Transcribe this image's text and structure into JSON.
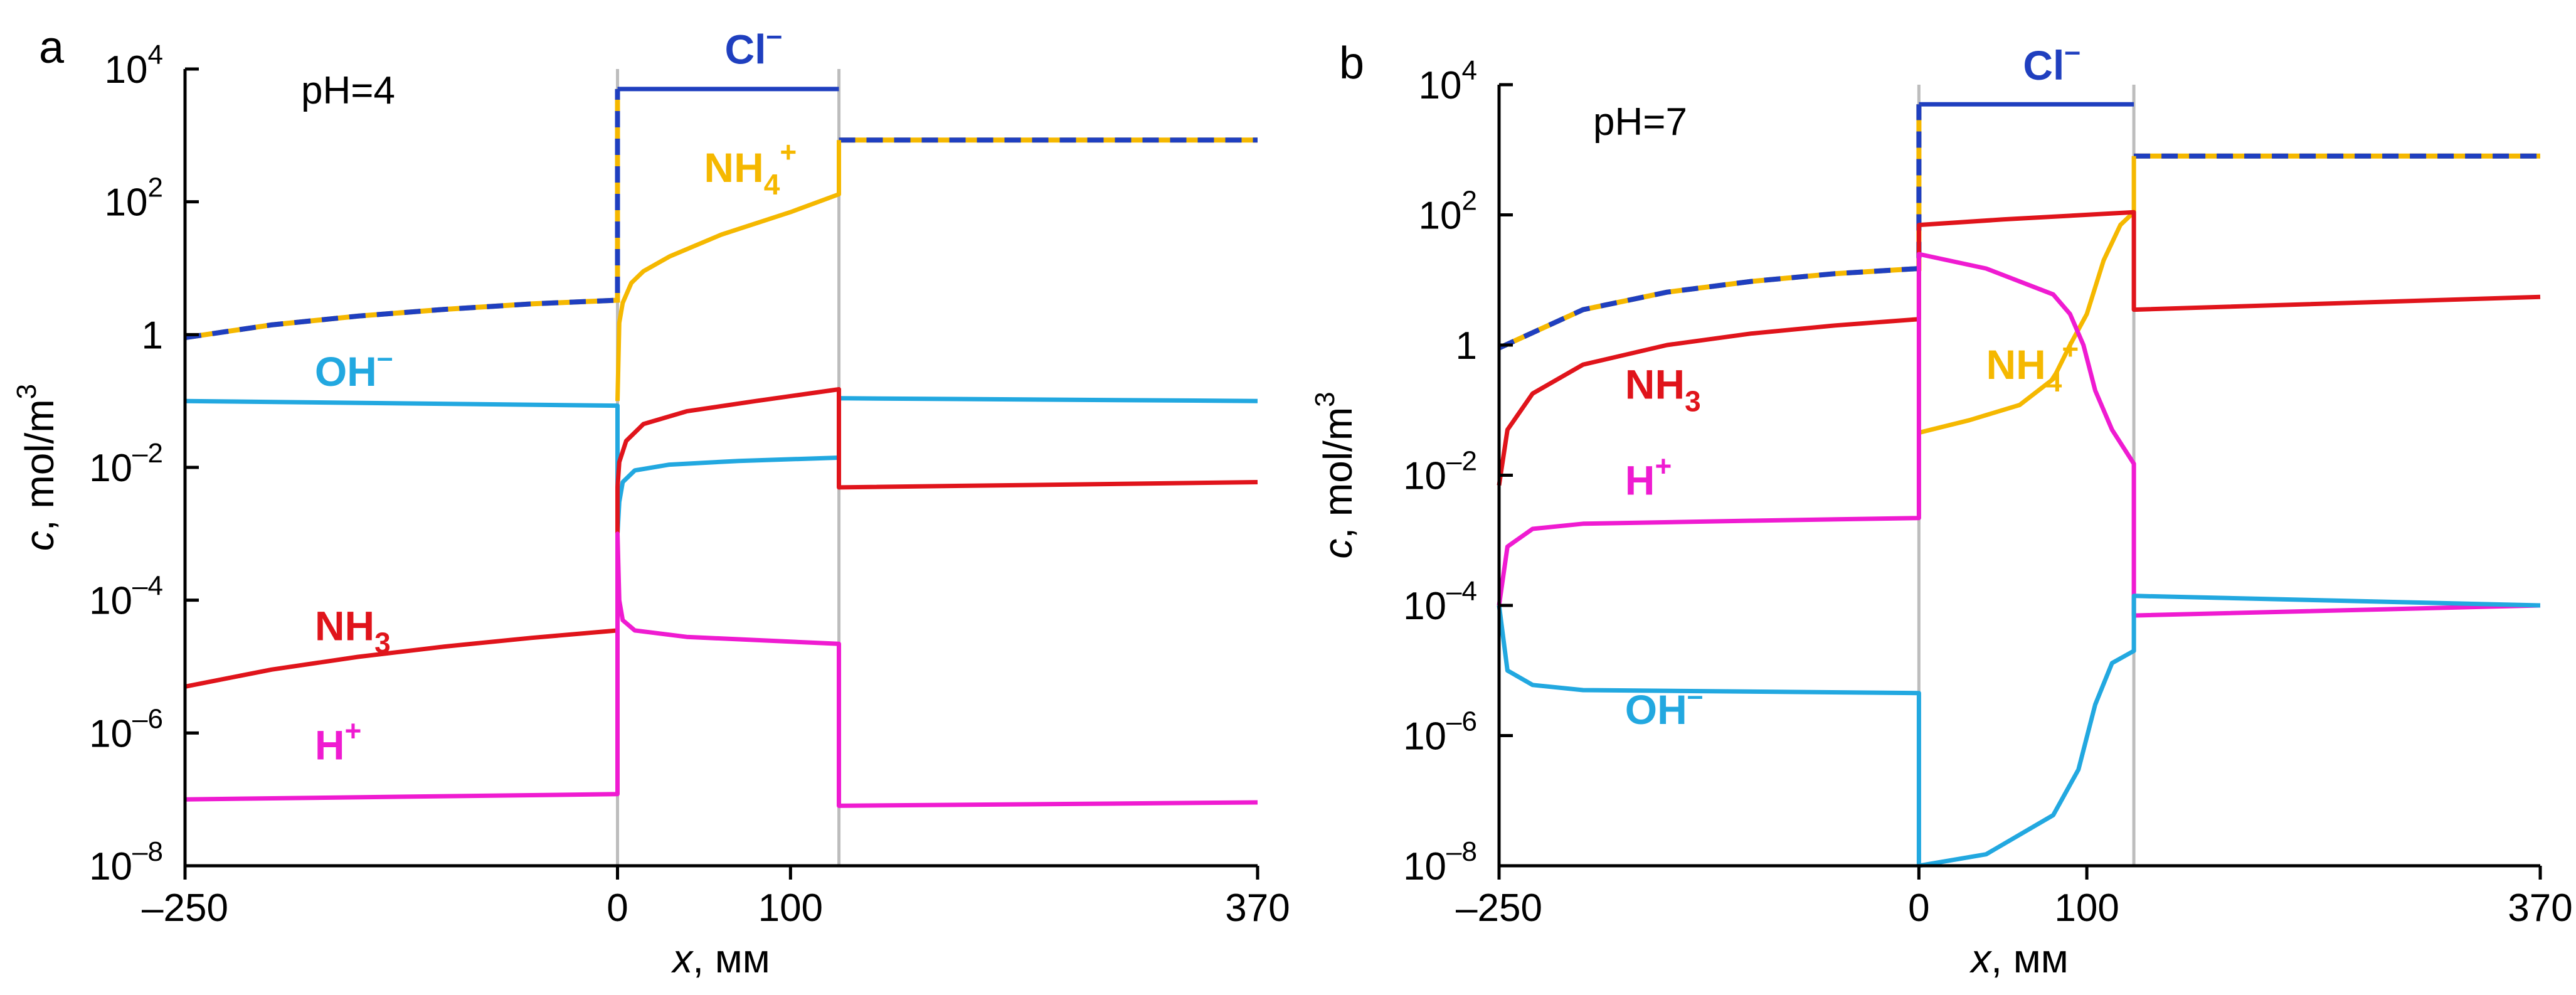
{
  "chart_data": [
    {
      "type": "line",
      "panel_label": "a",
      "annotation": "pH=4",
      "xlabel": "x, мм",
      "ylabel": "c, mol/m3",
      "yscale": "log",
      "ylim": [
        1e-08,
        10000
      ],
      "ytick_values": [
        1e-08,
        1e-06,
        0.0001,
        0.01,
        1,
        100,
        10000
      ],
      "ytick_labels": [
        {
          "base": "10",
          "exp": "–8"
        },
        {
          "base": "10",
          "exp": "–6"
        },
        {
          "base": "10",
          "exp": "–4"
        },
        {
          "base": "10",
          "exp": "–2"
        },
        {
          "base": "1",
          "exp": ""
        },
        {
          "base": "10",
          "exp": "2"
        },
        {
          "base": "10",
          "exp": "4"
        }
      ],
      "xtick_labels": [
        "–250",
        "0",
        "100",
        "370"
      ],
      "series": [
        {
          "name": "Cl–",
          "color": "#1f3fbf",
          "style": "solid",
          "points": [
            [
              0,
              5000
            ],
            [
              128,
              5000
            ]
          ]
        },
        {
          "name": "Cl– / NH4+",
          "color": "#1f3fbf",
          "style": "dashed",
          "overlay": "#f5b800",
          "points": [
            [
              -250,
              0.9
            ],
            [
              -200,
              1.4
            ],
            [
              -150,
              1.9
            ],
            [
              -100,
              2.4
            ],
            [
              -50,
              2.9
            ],
            [
              0,
              3.3
            ],
            [
              0,
              5000
            ]
          ],
          "points2": [
            [
              128,
              850
            ],
            [
              370,
              850
            ]
          ]
        },
        {
          "name": "NH4+",
          "color": "#f5b800",
          "style": "solid",
          "points": [
            [
              0,
              0.1
            ],
            [
              1,
              1.5
            ],
            [
              3,
              3
            ],
            [
              8,
              6
            ],
            [
              15,
              9
            ],
            [
              30,
              15
            ],
            [
              60,
              32
            ],
            [
              100,
              70
            ],
            [
              128,
              130
            ],
            [
              128,
              850
            ]
          ]
        },
        {
          "name": "OH–",
          "color": "#22a8e0",
          "style": "solid",
          "points": [
            [
              -250,
              0.1
            ],
            [
              0,
              0.085
            ],
            [
              0,
              0.001
            ],
            [
              1,
              0.003
            ],
            [
              3,
              0.006
            ],
            [
              10,
              0.009
            ],
            [
              30,
              0.011
            ],
            [
              70,
              0.0125
            ],
            [
              128,
              0.014
            ],
            [
              128,
              0.11
            ],
            [
              370,
              0.1
            ]
          ]
        },
        {
          "name": "NH3",
          "color": "#e0141b",
          "style": "solid",
          "points": [
            [
              -250,
              5e-06
            ],
            [
              -200,
              9e-06
            ],
            [
              -150,
              1.4e-05
            ],
            [
              -100,
              2e-05
            ],
            [
              -50,
              2.7e-05
            ],
            [
              0,
              3.5e-05
            ],
            [
              0,
              0.005
            ],
            [
              1,
              0.012
            ],
            [
              5,
              0.025
            ],
            [
              15,
              0.045
            ],
            [
              40,
              0.07
            ],
            [
              80,
              0.1
            ],
            [
              128,
              0.15
            ],
            [
              128,
              0.005
            ],
            [
              370,
              0.006
            ]
          ]
        },
        {
          "name": "H+",
          "color": "#ef1bd1",
          "style": "solid",
          "points": [
            [
              -250,
              1e-07
            ],
            [
              0,
              1.2e-07
            ],
            [
              0,
              0.001
            ],
            [
              1,
              0.0001
            ],
            [
              3,
              5e-05
            ],
            [
              10,
              3.5e-05
            ],
            [
              40,
              2.8e-05
            ],
            [
              128,
              2.2e-05
            ],
            [
              128,
              8e-08
            ],
            [
              370,
              9e-08
            ]
          ]
        }
      ],
      "labels": [
        {
          "text": "Cl",
          "sup": "–",
          "color": "#1f3fbf",
          "x": 62,
          "y": 12000
        },
        {
          "text": "NH",
          "sub": "4",
          "sup": "+",
          "color": "#f5b800",
          "x": 50,
          "y": 200
        },
        {
          "text": "OH",
          "sup": "–",
          "color": "#22a8e0",
          "x": -175,
          "y": 0.17
        },
        {
          "text": "NH",
          "sub": "3",
          "color": "#e0141b",
          "x": -175,
          "y": 2.5e-05
        },
        {
          "text": "H",
          "sup": "+",
          "color": "#ef1bd1",
          "x": -175,
          "y": 4e-07
        }
      ]
    },
    {
      "type": "line",
      "panel_label": "b",
      "annotation": "pH=7",
      "xlabel": "x, мм",
      "ylabel": "c, mol/m3",
      "yscale": "log",
      "ylim": [
        1e-08,
        10000
      ],
      "ytick_values": [
        1e-08,
        1e-06,
        0.0001,
        0.01,
        1,
        100,
        10000
      ],
      "ytick_labels": [
        {
          "base": "10",
          "exp": "–8"
        },
        {
          "base": "10",
          "exp": "–6"
        },
        {
          "base": "10",
          "exp": "–4"
        },
        {
          "base": "10",
          "exp": "–2"
        },
        {
          "base": "1",
          "exp": ""
        },
        {
          "base": "10",
          "exp": "2"
        },
        {
          "base": "10",
          "exp": "4"
        }
      ],
      "xtick_labels": [
        "–250",
        "0",
        "100",
        "370"
      ],
      "series": [
        {
          "name": "Cl–",
          "color": "#1f3fbf",
          "style": "solid",
          "points": [
            [
              0,
              5000
            ],
            [
              128,
              5000
            ]
          ]
        },
        {
          "name": "Cl– / NH4+",
          "color": "#1f3fbf",
          "style": "dashed",
          "overlay": "#f5b800",
          "points": [
            [
              -250,
              0.9
            ],
            [
              -200,
              3.5
            ],
            [
              -150,
              6.5
            ],
            [
              -100,
              9.5
            ],
            [
              -50,
              12.5
            ],
            [
              0,
              15
            ],
            [
              0,
              5000
            ]
          ],
          "points2": [
            [
              128,
              800
            ],
            [
              370,
              800
            ]
          ]
        },
        {
          "name": "NH4+",
          "color": "#f5b800",
          "style": "solid",
          "points": [
            [
              0,
              0.045
            ],
            [
              30,
              0.07
            ],
            [
              60,
              0.12
            ],
            [
              80,
              0.3
            ],
            [
              90,
              1
            ],
            [
              100,
              3
            ],
            [
              110,
              20
            ],
            [
              120,
              70
            ],
            [
              128,
              110
            ],
            [
              128,
              800
            ]
          ]
        },
        {
          "name": "NH3",
          "color": "#e0141b",
          "style": "solid",
          "points": [
            [
              -250,
              0.007
            ],
            [
              -245,
              0.05
            ],
            [
              -230,
              0.18
            ],
            [
              -200,
              0.5
            ],
            [
              -150,
              1
            ],
            [
              -100,
              1.5
            ],
            [
              -50,
              2
            ],
            [
              0,
              2.5
            ],
            [
              0,
              70
            ],
            [
              50,
              85
            ],
            [
              128,
              110
            ],
            [
              128,
              3.5
            ],
            [
              370,
              5.5
            ]
          ]
        },
        {
          "name": "H+",
          "color": "#ef1bd1",
          "style": "solid",
          "points": [
            [
              -250,
              0.0001
            ],
            [
              -245,
              0.0008
            ],
            [
              -230,
              0.0015
            ],
            [
              -200,
              0.0018
            ],
            [
              -100,
              0.002
            ],
            [
              0,
              0.0022
            ],
            [
              0,
              25
            ],
            [
              40,
              15
            ],
            [
              80,
              6
            ],
            [
              90,
              3
            ],
            [
              98,
              1
            ],
            [
              105,
              0.2
            ],
            [
              115,
              0.05
            ],
            [
              128,
              0.015
            ],
            [
              128,
              7e-05
            ],
            [
              370,
              0.0001
            ]
          ]
        },
        {
          "name": "OH–",
          "color": "#22a8e0",
          "style": "solid",
          "points": [
            [
              -250,
              0.0001
            ],
            [
              -245,
              1e-05
            ],
            [
              -230,
              6e-06
            ],
            [
              -200,
              5e-06
            ],
            [
              0,
              4.5e-06
            ],
            [
              0,
              1e-08
            ],
            [
              40,
              1.5e-08
            ],
            [
              80,
              6e-08
            ],
            [
              95,
              3e-07
            ],
            [
              105,
              3e-06
            ],
            [
              115,
              1.3e-05
            ],
            [
              128,
              2e-05
            ],
            [
              128,
              0.00014
            ],
            [
              370,
              0.0001
            ]
          ]
        }
      ],
      "labels": [
        {
          "text": "Cl",
          "sup": "–",
          "color": "#1f3fbf",
          "x": 62,
          "y": 12000
        },
        {
          "text": "NH",
          "sub": "4",
          "sup": "+",
          "color": "#f5b800",
          "x": 40,
          "y": 0.3
        },
        {
          "text": "NH",
          "sub": "3",
          "color": "#e0141b",
          "x": -175,
          "y": 0.15
        },
        {
          "text": "H",
          "sup": "+",
          "color": "#ef1bd1",
          "x": -175,
          "y": 0.005
        },
        {
          "text": "OH",
          "sup": "–",
          "color": "#22a8e0",
          "x": -175,
          "y": 1.5e-06
        }
      ]
    }
  ]
}
